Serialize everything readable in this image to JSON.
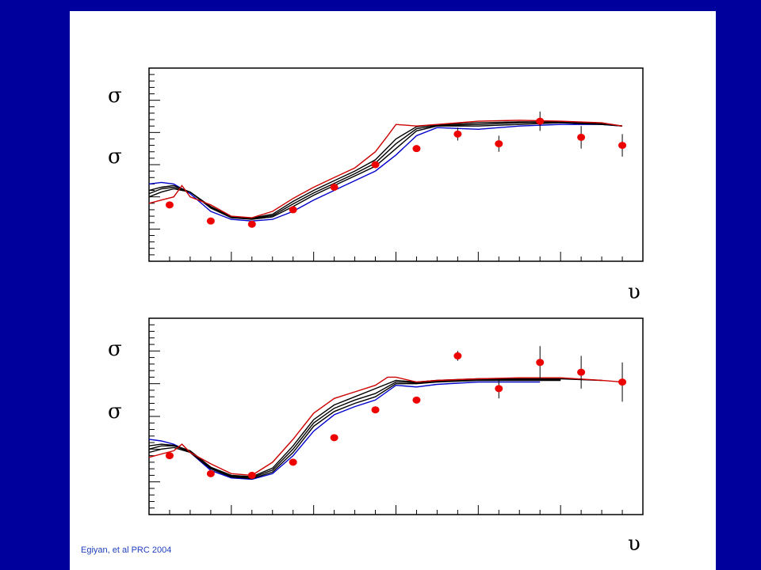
{
  "slide": {
    "citation": "Egiyan, et al PRC 2004",
    "colors": {
      "background": "#00009c",
      "panel": "#ffffff"
    }
  },
  "chart_data": [
    {
      "type": "line",
      "title": "",
      "ylabel_symbols": [
        "σ",
        "σ"
      ],
      "xlabel_symbol": "υ",
      "xlim": [
        0,
        12
      ],
      "ylim": [
        0,
        6
      ],
      "grid": false,
      "series": [
        {
          "color": "#0000cc",
          "x": [
            0,
            0.3,
            0.6,
            1,
            1.5,
            2,
            2.5,
            3,
            3.5,
            4,
            4.5,
            5,
            5.5,
            6,
            6.5,
            7,
            8,
            9,
            10,
            11,
            11.5
          ],
          "y": [
            2.4,
            2.45,
            2.4,
            2.1,
            1.55,
            1.3,
            1.25,
            1.3,
            1.55,
            1.9,
            2.2,
            2.5,
            2.8,
            3.3,
            3.9,
            4.15,
            4.1,
            4.2,
            4.25,
            4.25,
            4.2
          ]
        },
        {
          "color": "#000000",
          "x": [
            0,
            0.3,
            0.6,
            1,
            1.5,
            2,
            2.5,
            3,
            3.5,
            4,
            4.5,
            5,
            5.5,
            6,
            6.5,
            7,
            8,
            9,
            10,
            11,
            11.5
          ],
          "y": [
            2.0,
            2.15,
            2.25,
            2.15,
            1.65,
            1.35,
            1.3,
            1.38,
            1.7,
            2.05,
            2.35,
            2.65,
            2.95,
            3.5,
            4.05,
            4.2,
            4.2,
            4.25,
            4.3,
            4.25,
            4.2
          ]
        },
        {
          "color": "#000000",
          "x": [
            0,
            0.3,
            0.6,
            1,
            1.5,
            2,
            2.5,
            3,
            3.5,
            4,
            4.5,
            5,
            5.5,
            6,
            6.5,
            7,
            8,
            9,
            10,
            11,
            11.5
          ],
          "y": [
            2.1,
            2.25,
            2.3,
            2.15,
            1.68,
            1.36,
            1.32,
            1.42,
            1.78,
            2.12,
            2.42,
            2.72,
            3.05,
            3.65,
            4.12,
            4.22,
            4.25,
            4.3,
            4.32,
            4.27,
            4.2
          ]
        },
        {
          "color": "#000000",
          "x": [
            0,
            0.3,
            0.6,
            1,
            1.5,
            2,
            2.5,
            3,
            3.5,
            4,
            4.5,
            5,
            5.5,
            6,
            6.5,
            7,
            8,
            9,
            10,
            11,
            11.5
          ],
          "y": [
            2.2,
            2.3,
            2.35,
            2.15,
            1.7,
            1.38,
            1.34,
            1.46,
            1.86,
            2.2,
            2.5,
            2.8,
            3.15,
            3.8,
            4.18,
            4.24,
            4.3,
            4.33,
            4.33,
            4.28,
            4.2
          ]
        },
        {
          "color": "#cc0000",
          "x": [
            0,
            0.3,
            0.6,
            0.8,
            1,
            1.5,
            2,
            2.5,
            3,
            3.5,
            4,
            4.5,
            5,
            5.5,
            5.8,
            6,
            6.5,
            7,
            8,
            9,
            10,
            11,
            11.5
          ],
          "y": [
            1.8,
            1.9,
            2.0,
            2.35,
            2.0,
            1.75,
            1.4,
            1.35,
            1.55,
            1.95,
            2.3,
            2.6,
            2.9,
            3.4,
            3.9,
            4.25,
            4.2,
            4.25,
            4.35,
            4.38,
            4.35,
            4.3,
            4.2
          ]
        }
      ],
      "points": {
        "color": "#ee0000",
        "x": [
          0.5,
          1.5,
          2.5,
          3.5,
          4.5,
          5.5,
          6.5,
          7.5,
          8.5,
          9.5,
          10.5,
          11.5
        ],
        "y": [
          1.75,
          1.25,
          1.15,
          1.6,
          2.3,
          3.0,
          3.5,
          3.95,
          3.65,
          4.35,
          3.85,
          3.6
        ],
        "err": [
          0.05,
          0.05,
          0.05,
          0.05,
          0.05,
          0.05,
          0.05,
          0.2,
          0.25,
          0.3,
          0.35,
          0.35
        ]
      }
    },
    {
      "type": "line",
      "title": "",
      "ylabel_symbols": [
        "σ",
        "σ"
      ],
      "xlabel_symbol": "υ",
      "xlim": [
        0,
        12
      ],
      "ylim": [
        0,
        6
      ],
      "grid": false,
      "series": [
        {
          "color": "#0000cc",
          "x": [
            0,
            0.3,
            0.6,
            1,
            1.5,
            2,
            2.5,
            3,
            3.5,
            4,
            4.5,
            5,
            5.5,
            6,
            6.5,
            7,
            8,
            9,
            9.5
          ],
          "y": [
            2.3,
            2.25,
            2.15,
            1.9,
            1.35,
            1.12,
            1.08,
            1.25,
            1.8,
            2.55,
            3.05,
            3.3,
            3.5,
            3.95,
            3.9,
            3.98,
            4.05,
            4.05,
            4.05
          ]
        },
        {
          "color": "#000000",
          "x": [
            0,
            0.3,
            0.6,
            1,
            1.5,
            2,
            2.5,
            3,
            3.5,
            4,
            4.5,
            5,
            5.5,
            6,
            6.5,
            7,
            8,
            9,
            10
          ],
          "y": [
            1.9,
            2.0,
            2.05,
            1.9,
            1.4,
            1.15,
            1.1,
            1.3,
            1.9,
            2.7,
            3.15,
            3.4,
            3.6,
            4.0,
            4.0,
            4.05,
            4.1,
            4.1,
            4.1
          ]
        },
        {
          "color": "#000000",
          "x": [
            0,
            0.3,
            0.6,
            1,
            1.5,
            2,
            2.5,
            3,
            3.5,
            4,
            4.5,
            5,
            5.5,
            6,
            6.5,
            7,
            8,
            9,
            10
          ],
          "y": [
            2.0,
            2.1,
            2.1,
            1.92,
            1.42,
            1.17,
            1.13,
            1.36,
            2.0,
            2.8,
            3.25,
            3.5,
            3.7,
            4.05,
            4.03,
            4.08,
            4.12,
            4.12,
            4.12
          ]
        },
        {
          "color": "#000000",
          "x": [
            0,
            0.3,
            0.6,
            1,
            1.5,
            2,
            2.5,
            3,
            3.5,
            4,
            4.5,
            5,
            5.5,
            6,
            6.5,
            7,
            8,
            9,
            10,
            11
          ],
          "y": [
            2.1,
            2.15,
            2.12,
            1.95,
            1.45,
            1.2,
            1.16,
            1.42,
            2.1,
            2.9,
            3.35,
            3.6,
            3.85,
            4.1,
            4.05,
            4.1,
            4.15,
            4.15,
            4.15,
            4.1
          ]
        },
        {
          "color": "#cc0000",
          "x": [
            0,
            0.3,
            0.6,
            0.8,
            1,
            1.5,
            2,
            2.5,
            3,
            3.5,
            4,
            4.5,
            5,
            5.5,
            5.8,
            6,
            6.5,
            7,
            8,
            9,
            10,
            11,
            11.5
          ],
          "y": [
            1.75,
            1.85,
            1.95,
            2.15,
            1.9,
            1.55,
            1.25,
            1.2,
            1.6,
            2.3,
            3.1,
            3.55,
            3.75,
            3.95,
            4.2,
            4.2,
            4.05,
            4.1,
            4.15,
            4.18,
            4.18,
            4.1,
            4.05
          ]
        }
      ],
      "points": {
        "color": "#ee0000",
        "x": [
          0.5,
          1.5,
          2.5,
          3.5,
          4.5,
          5.5,
          6.5,
          7.5,
          8.5,
          9.5,
          10.5,
          11.5
        ],
        "y": [
          1.8,
          1.25,
          1.2,
          1.6,
          2.35,
          3.2,
          3.5,
          4.85,
          3.85,
          4.65,
          4.35,
          4.05
        ],
        "err": [
          0.05,
          0.05,
          0.05,
          0.05,
          0.05,
          0.05,
          0.1,
          0.15,
          0.3,
          0.5,
          0.5,
          0.6
        ]
      }
    }
  ]
}
